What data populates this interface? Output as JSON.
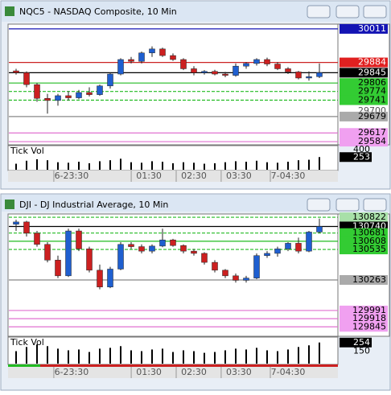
{
  "windows": [
    {
      "title": "NQC5 - NASDAQ Composite, 10 Min",
      "ylim": [
        30029,
        29572
      ],
      "candles": [
        [
          29852,
          29860,
          29838,
          29845
        ],
        [
          29845,
          29850,
          29790,
          29800
        ],
        [
          29800,
          29806,
          29735,
          29748
        ],
        [
          29748,
          29765,
          29690,
          29740
        ],
        [
          29740,
          29765,
          29720,
          29758
        ],
        [
          29758,
          29775,
          29740,
          29750
        ],
        [
          29750,
          29780,
          29745,
          29770
        ],
        [
          29770,
          29790,
          29755,
          29762
        ],
        [
          29762,
          29800,
          29758,
          29795
        ],
        [
          29795,
          29845,
          29785,
          29840
        ],
        [
          29840,
          29900,
          29835,
          29895
        ],
        [
          29895,
          29905,
          29880,
          29888
        ],
        [
          29888,
          29925,
          29880,
          29920
        ],
        [
          29920,
          29945,
          29905,
          29935
        ],
        [
          29935,
          29940,
          29905,
          29910
        ],
        [
          29910,
          29918,
          29890,
          29895
        ],
        [
          29895,
          29900,
          29855,
          29860
        ],
        [
          29860,
          29870,
          29835,
          29845
        ],
        [
          29845,
          29855,
          29838,
          29850
        ],
        [
          29850,
          29856,
          29835,
          29840
        ],
        [
          29840,
          29848,
          29828,
          29835
        ],
        [
          29835,
          29880,
          29830,
          29870
        ],
        [
          29870,
          29885,
          29860,
          29880
        ],
        [
          29880,
          29900,
          29872,
          29895
        ],
        [
          29895,
          29902,
          29870,
          29878
        ],
        [
          29878,
          29885,
          29855,
          29860
        ],
        [
          29860,
          29866,
          29840,
          29848
        ],
        [
          29848,
          29852,
          29820,
          29825
        ],
        [
          29825,
          29850,
          29815,
          29830
        ],
        [
          29830,
          29880,
          29825,
          29845
        ]
      ],
      "levels": [
        {
          "value": 30011,
          "color": "#1414b4",
          "tag_bg": "#1414b4",
          "tag_fg": "#ffffff"
        },
        {
          "value": 29884,
          "color": "#cc2222",
          "tag_bg": "#e02020",
          "tag_fg": "#ffffff"
        },
        {
          "value": 29845,
          "color": "#000000",
          "tag_bg": "#000000",
          "tag_fg": "#ffffff"
        },
        {
          "value": 29806,
          "color": "#22bb22",
          "tag_bg": "#33cc33",
          "tag_fg": "#000000"
        },
        {
          "value": 29774,
          "color": "#22bb22",
          "tag_bg": "#33cc33",
          "tag_fg": "#000000",
          "dashed": true
        },
        {
          "value": 29741,
          "color": "#22bb22",
          "tag_bg": "#33cc33",
          "tag_fg": "#000000",
          "dashed": true
        },
        {
          "value": 29700,
          "color": "none",
          "tag_bg": "#ffffff",
          "tag_fg": "#555555"
        },
        {
          "value": 29679,
          "color": "#888888",
          "tag_bg": "#aaaaaa",
          "tag_fg": "#000000"
        },
        {
          "value": 29617,
          "color": "#e070d0",
          "tag_bg": "#f0a0f0",
          "tag_fg": "#000000"
        },
        {
          "value": 29584,
          "color": "#e070d0",
          "tag_bg": "#f0a0f0",
          "tag_fg": "#000000"
        }
      ],
      "vol_label": "Tick Vol",
      "vol_ylim": [
        0,
        450
      ],
      "vol_ticks": [
        400
      ],
      "volume": [
        120,
        180,
        210,
        190,
        150,
        140,
        160,
        130,
        170,
        190,
        220,
        150,
        140,
        170,
        160,
        130,
        150,
        140,
        120,
        130,
        150,
        170,
        160,
        180,
        150,
        140,
        160,
        190,
        200,
        253
      ],
      "time_labels": [
        "6-23:30",
        "01:30",
        "02:30",
        "03:30",
        "7-04:30"
      ]
    },
    {
      "title": "DJI - DJ Industrial Average, 10 Min",
      "ylim": [
        130851,
        129761
      ],
      "candles": [
        [
          130760,
          130800,
          130700,
          130780
        ],
        [
          130780,
          130790,
          130650,
          130680
        ],
        [
          130680,
          130700,
          130560,
          130580
        ],
        [
          130580,
          130600,
          130420,
          130440
        ],
        [
          130440,
          130480,
          130280,
          130300
        ],
        [
          130300,
          130720,
          130290,
          130700
        ],
        [
          130700,
          130720,
          130520,
          130540
        ],
        [
          130540,
          130560,
          130330,
          130350
        ],
        [
          130350,
          130400,
          130180,
          130200
        ],
        [
          130200,
          130380,
          130190,
          130360
        ],
        [
          130360,
          130600,
          130350,
          130580
        ],
        [
          130580,
          130600,
          130540,
          130560
        ],
        [
          130560,
          130580,
          130500,
          130520
        ],
        [
          130520,
          130580,
          130500,
          130565
        ],
        [
          130565,
          130720,
          130555,
          130620
        ],
        [
          130620,
          130630,
          130560,
          130570
        ],
        [
          130570,
          130580,
          130500,
          130520
        ],
        [
          130520,
          130540,
          130480,
          130500
        ],
        [
          130500,
          130510,
          130400,
          130420
        ],
        [
          130420,
          130440,
          130330,
          130350
        ],
        [
          130350,
          130360,
          130280,
          130300
        ],
        [
          130300,
          130320,
          130240,
          130260
        ],
        [
          130260,
          130300,
          130240,
          130280
        ],
        [
          130280,
          130500,
          130270,
          130480
        ],
        [
          130480,
          130520,
          130460,
          130500
        ],
        [
          130500,
          130560,
          130470,
          130540
        ],
        [
          130540,
          130600,
          130520,
          130590
        ],
        [
          130590,
          130640,
          130500,
          130520
        ],
        [
          130520,
          130700,
          130510,
          130690
        ],
        [
          130690,
          130810,
          130680,
          130740
        ]
      ],
      "levels": [
        {
          "value": 130822,
          "color": "#22bb22",
          "tag_bg": "#a8e0a8",
          "tag_fg": "#000000",
          "dashed": true
        },
        {
          "value": 130740,
          "color": "#000000",
          "tag_bg": "#000000",
          "tag_fg": "#ffffff"
        },
        {
          "value": 130681,
          "color": "#22bb22",
          "tag_bg": "#33cc33",
          "tag_fg": "#000000",
          "dashed": true
        },
        {
          "value": 130608,
          "color": "#22bb22",
          "tag_bg": "#33cc33",
          "tag_fg": "#000000"
        },
        {
          "value": 130535,
          "color": "#22bb22",
          "tag_bg": "#33cc33",
          "tag_fg": "#000000",
          "dashed": true
        },
        {
          "value": 130263,
          "color": "#888888",
          "tag_bg": "#aaaaaa",
          "tag_fg": "#000000"
        },
        {
          "value": 129991,
          "color": "#e070d0",
          "tag_bg": "#f0a0f0",
          "tag_fg": "#000000"
        },
        {
          "value": 129918,
          "color": "#e070d0",
          "tag_bg": "#f0a0f0",
          "tag_fg": "#000000"
        },
        {
          "value": 129845,
          "color": "#e070d0",
          "tag_bg": "#f0a0f0",
          "tag_fg": "#000000"
        }
      ],
      "vol_label": "Tick Vol",
      "vol_ylim": [
        0,
        300
      ],
      "vol_ticks": [
        150
      ],
      "volume": [
        150,
        200,
        230,
        210,
        180,
        160,
        170,
        140,
        180,
        190,
        210,
        160,
        150,
        170,
        180,
        140,
        160,
        150,
        130,
        140,
        160,
        180,
        170,
        190,
        160,
        150,
        170,
        200,
        220,
        254
      ],
      "time_labels": [
        "6-23:30",
        "01:30",
        "02:30",
        "03:30",
        "7-04:30"
      ]
    }
  ]
}
